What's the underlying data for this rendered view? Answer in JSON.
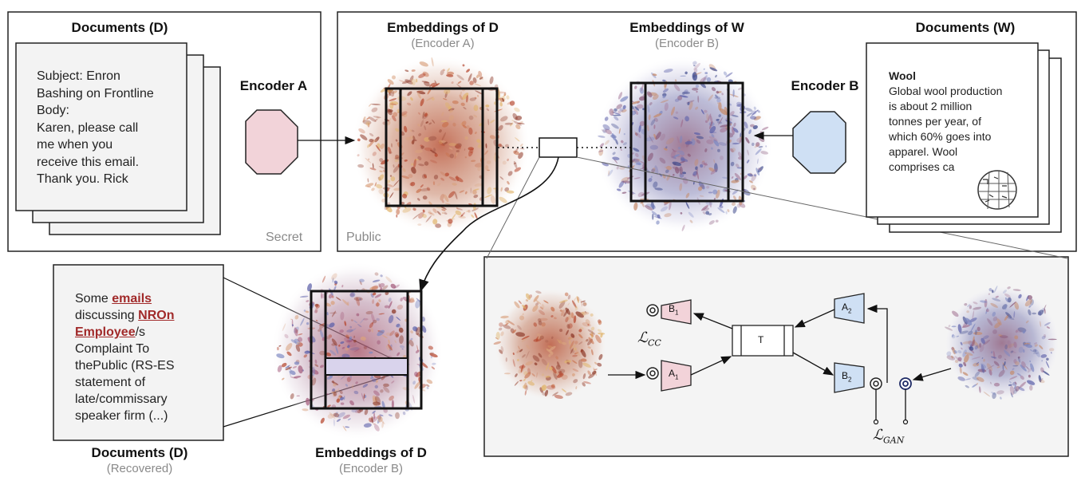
{
  "left_panel": {
    "title": "Documents (D)",
    "corner_label": "Secret",
    "email_lines": [
      "Subject: Enron",
      "Bashing on Frontline",
      "Body:",
      "Karen, please call",
      "me when you",
      "receive this email.",
      "Thank you. Rick"
    ],
    "encoder_label": "Encoder A"
  },
  "public_panel": {
    "corner_label": "Public",
    "emb_d_title": "Embeddings of D",
    "emb_d_subtitle": "(Encoder A)",
    "emb_w_title": "Embeddings of W",
    "emb_w_subtitle": "(Encoder B)",
    "encoder_label": "Encoder B",
    "docs_w_title": "Documents (W)",
    "wiki_title": "Wool",
    "wiki_lines": [
      "Global wool production",
      "is about 2 million",
      "tonnes per year, of",
      "which 60% goes into",
      "apparel. Wool",
      "comprises ca"
    ]
  },
  "recovered": {
    "title": "Documents (D)",
    "subtitle": "(Recovered)",
    "text_runs": [
      {
        "t": "Some ",
        "kw": false
      },
      {
        "t": "emails",
        "kw": true
      },
      {
        "t": " discussing ",
        "kw": false
      },
      {
        "t": "NROn Employee",
        "kw": true
      },
      {
        "t": "/s Complaint To thePublic (RS-ES statement of late/commissary speaker firm (...)",
        "kw": false
      }
    ],
    "emb_title": "Embeddings of D",
    "emb_subtitle": "(Encoder B)"
  },
  "translator": {
    "a1": "A",
    "a1_sub": "1",
    "a2": "A",
    "a2_sub": "2",
    "b1": "B",
    "b1_sub": "1",
    "b2": "B",
    "b2_sub": "2",
    "t": "T",
    "loss_cc": "ℒ",
    "loss_cc_sub": "CC",
    "loss_gan": "ℒ",
    "loss_gan_sub": "GAN"
  },
  "colors": {
    "encoder_a": "#f2d3d9",
    "encoder_b": "#cfe0f4",
    "cloud_red": "#c4603e",
    "cloud_blue": "#6e6fb2",
    "highlight_bar": "#d9d3ec"
  }
}
